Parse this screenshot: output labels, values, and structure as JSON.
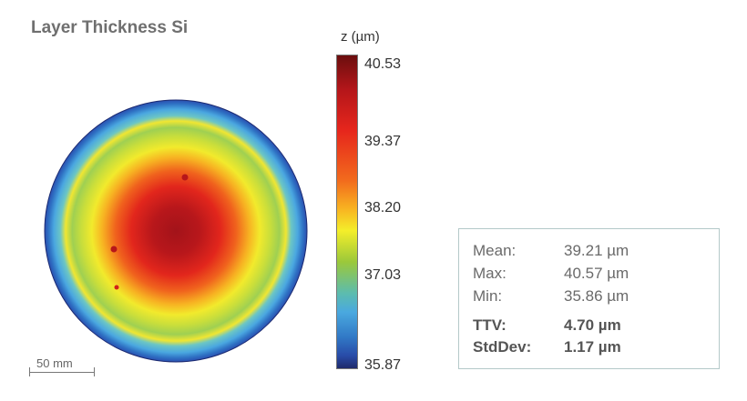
{
  "title": "Layer Thickness Si",
  "colorbar": {
    "unit_label": "z (µm)",
    "ticks": [
      "40.53",
      "39.37",
      "38.20",
      "37.03",
      "35.87"
    ],
    "tick_values": [
      40.53,
      39.37,
      38.2,
      37.03,
      35.87
    ],
    "range": [
      35.87,
      40.53
    ],
    "colors": [
      "#6b0e0e",
      "#b5161a",
      "#e6261c",
      "#f26b1d",
      "#f8b321",
      "#f4ee2a",
      "#9bc83a",
      "#5cbcae",
      "#4aa9df",
      "#3179c6",
      "#284ba8",
      "#1f2a6b"
    ]
  },
  "stats": {
    "mean_label": "Mean:",
    "mean_value": "39.21 µm",
    "max_label": "Max:",
    "max_value": "40.57 µm",
    "min_label": "Min:",
    "min_value": "35.86 µm",
    "ttv_label": "TTV:",
    "ttv_value": "4.70 µm",
    "stddev_label": "StdDev:",
    "stddev_value": "1.17 µm"
  },
  "scale_bar": {
    "label": "50 mm"
  },
  "chart_data": {
    "type": "heatmap",
    "title": "Layer Thickness Si",
    "zlabel": "z (µm)",
    "zlim": [
      35.87,
      40.53
    ],
    "colorbar_ticks": [
      40.53,
      39.37,
      38.2,
      37.03,
      35.87
    ],
    "radial_profile": {
      "r_fraction": [
        0.0,
        0.2,
        0.4,
        0.55,
        0.7,
        0.8,
        0.88,
        0.94,
        1.0
      ],
      "z": [
        40.5,
        40.3,
        39.8,
        39.1,
        38.6,
        38.2,
        37.5,
        36.9,
        36.4
      ]
    }
  }
}
